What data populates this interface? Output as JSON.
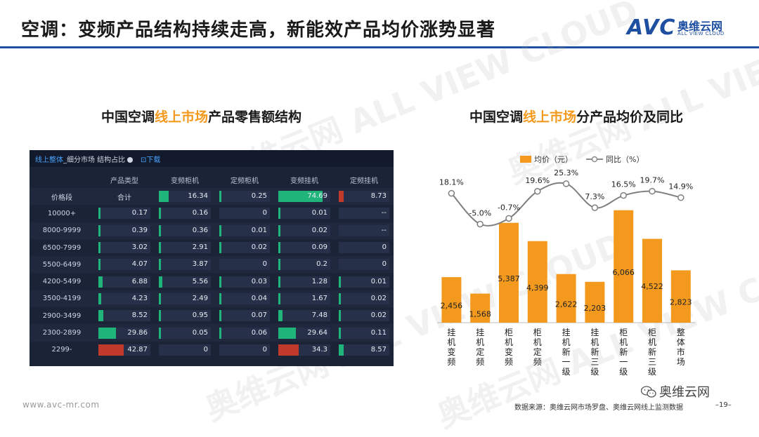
{
  "header": {
    "title": "空调：变频产品结构持续走高，新能效产品均价涨势显著",
    "logo_mark": "AVC",
    "logo_cn": "奥维云网",
    "logo_en": "ALL VIEW CLOUD",
    "brand_color": "#1e4fa0"
  },
  "watermark": {
    "text": "奥维云网 ALL VIEW CLOUD"
  },
  "left": {
    "title_a": "中国空调",
    "title_hl": "线上市场",
    "title_b": "产品零售额结构",
    "panel": {
      "crumb_link": "线上整体",
      "crumb_rest": "_细分市场 结构占比",
      "download": "下载"
    },
    "table": {
      "columns": [
        "",
        "产品类型",
        "变频柜机",
        "定频柜机",
        "变频挂机",
        "定频挂机"
      ],
      "rows": [
        {
          "label": "价格段",
          "values": [
            "合计",
            "16.34",
            "0.25",
            "74.69",
            "8.73"
          ]
        },
        {
          "label": "10000+",
          "values": [
            "0.17",
            "0.16",
            "0",
            "0.01",
            "--"
          ]
        },
        {
          "label": "8000-9999",
          "values": [
            "0.39",
            "0.36",
            "0.01",
            "0.02",
            "--"
          ]
        },
        {
          "label": "6500-7999",
          "values": [
            "3.02",
            "2.91",
            "0.02",
            "0.09",
            "0"
          ]
        },
        {
          "label": "5500-6499",
          "values": [
            "4.07",
            "3.87",
            "0",
            "0.2",
            "0"
          ]
        },
        {
          "label": "4200-5499",
          "values": [
            "6.88",
            "5.56",
            "0.03",
            "1.28",
            "0.01"
          ]
        },
        {
          "label": "3500-4199",
          "values": [
            "4.23",
            "2.49",
            "0.04",
            "1.67",
            "0.02"
          ]
        },
        {
          "label": "2900-3499",
          "values": [
            "8.52",
            "0.95",
            "0.07",
            "7.48",
            "0.02"
          ]
        },
        {
          "label": "2300-2899",
          "values": [
            "29.86",
            "0.05",
            "0.06",
            "29.64",
            "0.11"
          ]
        },
        {
          "label": "2299-",
          "values": [
            "42.87",
            "0",
            "0",
            "34.3",
            "8.57"
          ]
        }
      ],
      "bar_color_high": "#1fb47a",
      "bar_color_low": "#c0392b"
    }
  },
  "right": {
    "title_a": "中国空调",
    "title_hl": "线上市场",
    "title_b": "分产品均价及同比"
  },
  "chart_data": {
    "type": "bar",
    "categories": [
      "挂机变频",
      "挂机定频",
      "柜机变频",
      "柜机定频",
      "挂机新一级",
      "挂机新三级",
      "柜机新一级",
      "柜机新三级",
      "整体市场"
    ],
    "series": [
      {
        "name": "均价（元）",
        "type": "bar",
        "color": "#f39a1e",
        "values": [
          2456,
          1568,
          5387,
          4399,
          2622,
          2203,
          6066,
          4522,
          2823
        ],
        "labels": [
          "2,456",
          "1,568",
          "5,387",
          "4,399",
          "2,622",
          "2,203",
          "6,066",
          "4,522",
          "2,823"
        ]
      },
      {
        "name": "同比（%）",
        "type": "line",
        "color": "#8c8c8c",
        "values": [
          18.1,
          -5.0,
          -0.7,
          19.6,
          25.3,
          7.3,
          16.5,
          19.7,
          14.9
        ],
        "labels": [
          "18.1%",
          "-5.0%",
          "-0.7%",
          "19.6%",
          "25.3%",
          "7.3%",
          "16.5%",
          "19.7%",
          "14.9%"
        ]
      }
    ],
    "legend_position": "top",
    "grid": false
  },
  "footer": {
    "url": "www.avc-mr.com",
    "source": "数据来源：奥维云网市场罗盘、奥维云网线上监测数据",
    "page": "–19–",
    "wechat": "奥维云网"
  }
}
